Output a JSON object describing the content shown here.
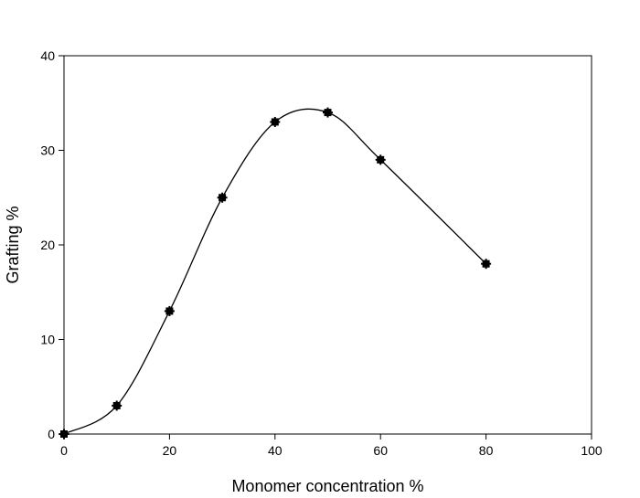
{
  "chart_data": {
    "type": "scatter",
    "title": "",
    "xlabel": "Monomer concentration %",
    "ylabel": "Grafting %",
    "xlim": [
      0,
      100
    ],
    "ylim": [
      0,
      40
    ],
    "xticks": [
      0,
      20,
      40,
      60,
      80,
      100
    ],
    "yticks": [
      0,
      10,
      20,
      30,
      40
    ],
    "grid": false,
    "legend": "none",
    "curve": "smooth",
    "series": [
      {
        "x": [
          0,
          10,
          20,
          30,
          40,
          50,
          60,
          80
        ],
        "y": [
          0,
          3,
          13,
          25,
          33,
          34,
          29,
          18
        ],
        "color": "#000000",
        "marker": "filled-square-cross"
      }
    ]
  }
}
